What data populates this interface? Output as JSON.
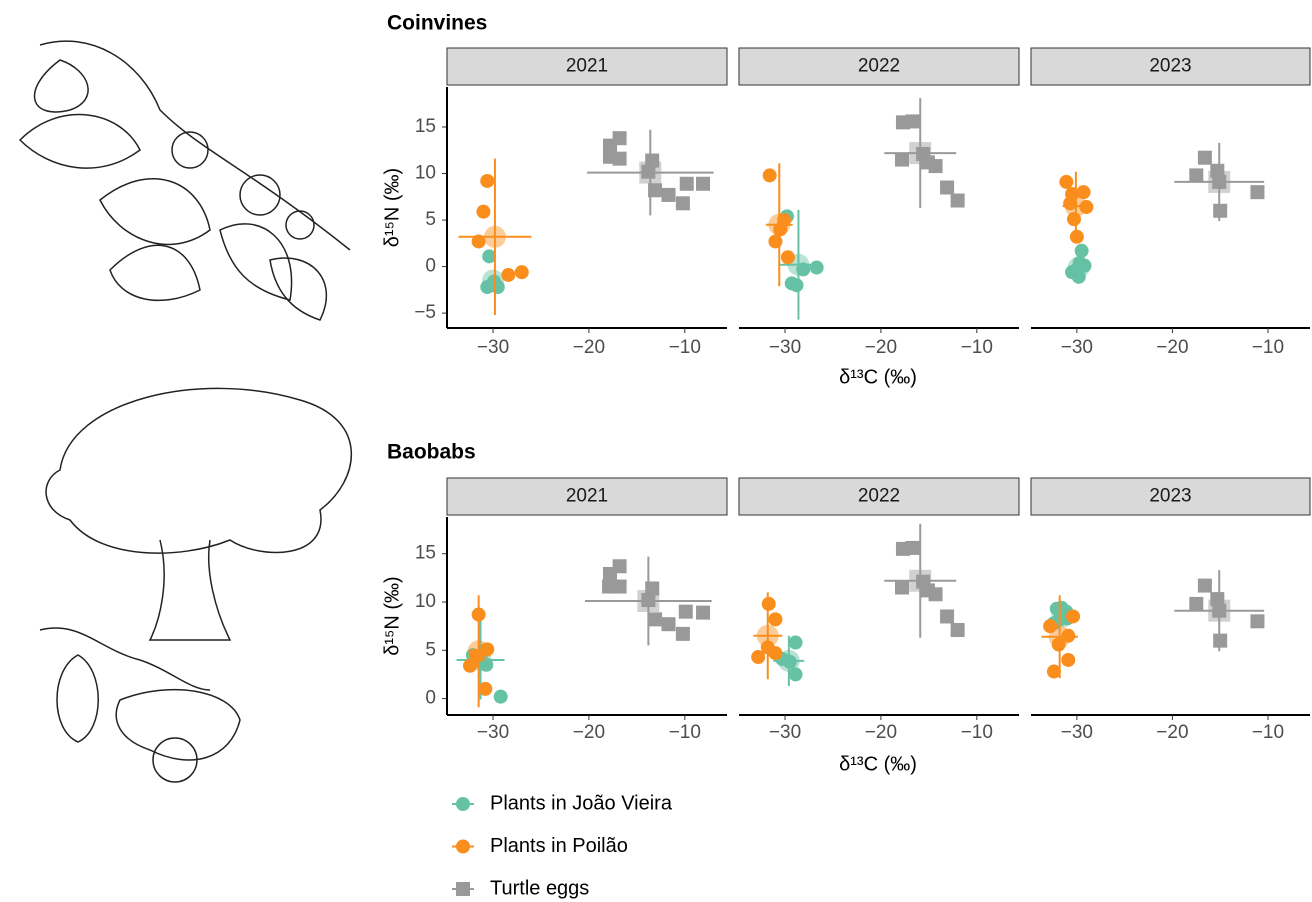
{
  "chart_data": [
    {
      "type": "scatter",
      "title": "Coinvines",
      "x_label": "δ¹³C (‰)",
      "y_label": "δ¹⁵N (‰)",
      "xlim": [
        -34.8,
        -5.6
      ],
      "xticks": [
        {
          "value": -30,
          "label": "−30"
        },
        {
          "value": -20,
          "label": "−20"
        },
        {
          "value": -10,
          "label": "−10"
        }
      ],
      "ylim": [
        -6.6,
        19.3
      ],
      "yticks": [
        {
          "value": -5,
          "label": "−5"
        },
        0,
        5,
        10,
        15
      ],
      "panels": [
        {
          "label": "2021",
          "series": [
            {
              "x": [
                -30.4,
                -30.6,
                -30.1,
                -29.5,
                -29.9
              ],
              "values": [
                1.1,
                -2.2,
                -2.0,
                -2.2,
                -1.6
              ],
              "mean_x": -30,
              "mean_y": -1.5,
              "sd_x": 0.5,
              "sd_y": 0.5
            },
            {
              "x": [
                -30.6,
                -31,
                -31.5,
                -28.4,
                -27
              ],
              "values": [
                9.2,
                5.9,
                2.7,
                -0.9,
                -0.6
              ],
              "mean_x": -29.8,
              "mean_y": 3.2,
              "sd_x": 3.8,
              "sd_y": 8.4
            },
            {
              "x": [
                -17.8,
                -16.8,
                -17.8,
                -16.8,
                -13.4,
                -13.1,
                -11.7,
                -10.2,
                -9.8,
                -8.1,
                -13.8
              ],
              "values": [
                13,
                13.8,
                11.8,
                11.6,
                11.4,
                8.2,
                7.7,
                6.8,
                8.9,
                8.9,
                10.2
              ],
              "mean_x": -13.6,
              "mean_y": 10.1,
              "sd_x": 6.6,
              "sd_y": 4.6
            }
          ]
        },
        {
          "label": "2022",
          "series": [
            {
              "x": [
                -29.8,
                -29.3,
                -28.8,
                -28.1,
                -26.7
              ],
              "values": [
                5.4,
                -1.8,
                -2.0,
                -0.3,
                -0.1
              ],
              "mean_x": -28.6,
              "mean_y": 0.2,
              "sd_x": 2.1,
              "sd_y": 5.9
            },
            {
              "x": [
                -31.6,
                -31,
                -29.7,
                -30.1,
                -30.5
              ],
              "values": [
                9.8,
                2.7,
                1,
                5,
                4
              ],
              "mean_x": -30.6,
              "mean_y": 4.5,
              "sd_x": 1.4,
              "sd_y": 6.6
            },
            {
              "x": [
                -17.7,
                -16.7,
                -17.8,
                -15.6,
                -15.1,
                -14.3,
                -13.1,
                -12
              ],
              "values": [
                15.5,
                15.6,
                11.5,
                12.1,
                11.2,
                10.8,
                8.5,
                7.1
              ],
              "mean_x": -15.9,
              "mean_y": 12.2,
              "sd_x": 3.75,
              "sd_y": 5.9
            }
          ]
        },
        {
          "label": "2023",
          "series": [
            {
              "x": [
                -29.5,
                -29.7,
                -30.1,
                -30.5,
                -29.2,
                -29.8
              ],
              "values": [
                1.7,
                0.4,
                -0.4,
                -0.6,
                0.1,
                -1.1
              ],
              "mean_x": -29.8,
              "mean_y": -0.1,
              "sd_x": 0.5,
              "sd_y": 0.9
            },
            {
              "x": [
                -31.1,
                -30.5,
                -29.3,
                -30.3,
                -30,
                -29,
                -30.7
              ],
              "values": [
                9.1,
                7.8,
                8,
                5.1,
                3.2,
                6.4,
                6.8
              ],
              "mean_x": -30.1,
              "mean_y": 6.5,
              "sd_x": 1.4,
              "sd_y": 3.7
            },
            {
              "x": [
                -16.6,
                -17.5,
                -15.3,
                -15,
                -11.1,
                -15.1
              ],
              "values": [
                11.7,
                9.8,
                10.3,
                6,
                8,
                9.1
              ],
              "mean_x": -15.1,
              "mean_y": 9.1,
              "sd_x": 4.7,
              "sd_y": 4.2
            }
          ]
        }
      ]
    },
    {
      "type": "scatter",
      "title": "Baobabs",
      "x_label": "δ¹³C (‰)",
      "y_label": "δ¹⁵N (‰)",
      "xlim": [
        -34.8,
        -5.6
      ],
      "xticks": [
        {
          "value": -30,
          "label": "−30"
        },
        {
          "value": -20,
          "label": "−20"
        },
        {
          "value": -10,
          "label": "−10"
        }
      ],
      "ylim": [
        -1.7,
        18.8
      ],
      "yticks": [
        0,
        5,
        10,
        15
      ],
      "panels": [
        {
          "label": "2021",
          "series": [
            {
              "x": [
                -29.2,
                -32.1,
                -30.8,
                -30.7,
                -31.4
              ],
              "values": [
                0.2,
                4.5,
                5,
                3.5,
                3.9
              ],
              "mean_x": -31.3,
              "mean_y": 4,
              "sd_x": 2.5,
              "sd_y": 4.1
            },
            {
              "x": [
                -31.5,
                -30.6,
                -32.4,
                -30.8,
                -31.7
              ],
              "values": [
                8.7,
                5.1,
                3.4,
                1,
                4.4
              ],
              "mean_x": -31.5,
              "mean_y": 4.9,
              "sd_x": 0.9,
              "sd_y": 5.8
            },
            {
              "x": [
                -17.8,
                -16.8,
                -17.9,
                -16.8,
                -13.4,
                -13.1,
                -11.7,
                -10.2,
                -9.9,
                -8.1,
                -13.8
              ],
              "values": [
                12.9,
                13.7,
                11.6,
                11.6,
                11.4,
                8.2,
                7.7,
                6.7,
                9,
                8.9,
                10.2
              ],
              "mean_x": -13.8,
              "mean_y": 10.1,
              "sd_x": 6.6,
              "sd_y": 4.6
            }
          ]
        },
        {
          "label": "2022",
          "series": [
            {
              "x": [
                -28.9,
                -30.3,
                -29.5,
                -28.9
              ],
              "values": [
                5.8,
                4.1,
                3.8,
                2.5
              ],
              "mean_x": -29.6,
              "mean_y": 3.9,
              "sd_x": 1.6,
              "sd_y": 2.6
            },
            {
              "x": [
                -31.7,
                -31,
                -32.8,
                -31.8,
                -31
              ],
              "values": [
                9.8,
                8.2,
                4.3,
                5.3,
                4.7
              ],
              "mean_x": -31.8,
              "mean_y": 6.5,
              "sd_x": 1.5,
              "sd_y": 4.5
            },
            {
              "x": [
                -17.7,
                -16.7,
                -17.8,
                -15.6,
                -15.1,
                -14.3,
                -13.1,
                -12
              ],
              "values": [
                15.5,
                15.6,
                11.5,
                12.1,
                11.2,
                10.8,
                8.5,
                7.1
              ],
              "mean_x": -15.9,
              "mean_y": 12.2,
              "sd_x": 3.75,
              "sd_y": 5.9
            }
          ]
        },
        {
          "label": "2023",
          "series": [
            {
              "x": [
                -32.1,
                -31.1,
                -31.8,
                -31,
                -32.4,
                -31.6
              ],
              "values": [
                9.3,
                9,
                8.2,
                8.3,
                7.8,
                9.4
              ],
              "mean_x": -31.5,
              "mean_y": 8.5,
              "sd_x": 0.6,
              "sd_y": 0.7
            },
            {
              "x": [
                -32.4,
                -30.9,
                -31.9,
                -30.4,
                -32.8,
                -30.9
              ],
              "values": [
                2.8,
                4,
                5.6,
                8.5,
                7.5,
                6.5
              ],
              "mean_x": -31.8,
              "mean_y": 6.4,
              "sd_x": 1.9,
              "sd_y": 4.3
            },
            {
              "x": [
                -16.6,
                -17.5,
                -15.3,
                -15,
                -11.1,
                -15.1
              ],
              "values": [
                11.7,
                9.8,
                10.3,
                6,
                8,
                9.1
              ],
              "mean_x": -15.1,
              "mean_y": 9.1,
              "sd_x": 4.7,
              "sd_y": 4.2
            }
          ]
        }
      ]
    }
  ],
  "legend": [
    {
      "name": "Plants in João Vieira",
      "color": "#66c2a5",
      "marker": "circle"
    },
    {
      "name": "Plants in Poilão",
      "color": "#f98e1d",
      "marker": "circle"
    },
    {
      "name": "Turtle eggs",
      "color": "#999999",
      "marker": "square"
    }
  ]
}
